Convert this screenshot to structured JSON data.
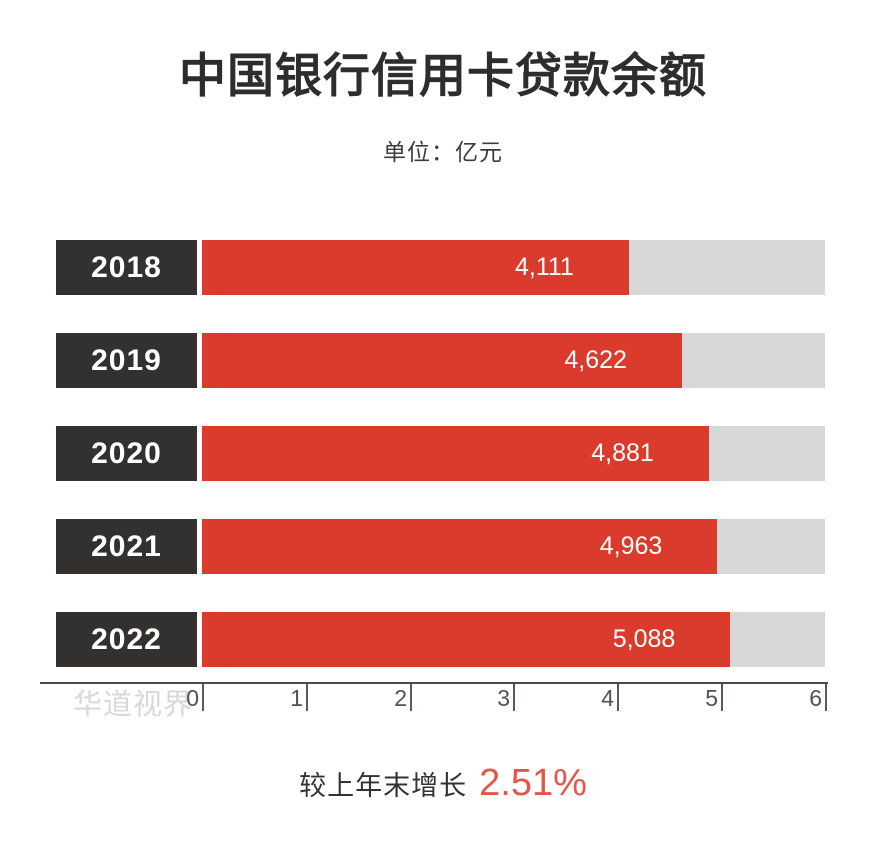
{
  "title": "中国银行信用卡贷款余额",
  "subtitle": "单位：亿元",
  "watermark": "华道视界",
  "footer": {
    "label": "较上年末增长",
    "percent": "2.51%"
  },
  "colors": {
    "bar": "#DA3B2C",
    "track": "#D8D8D8",
    "year_box": "#333130",
    "percent": "#E4564A",
    "axis": "#4E4A47",
    "tick_label": "#56504E",
    "watermark": "#DAD7D7",
    "title_color": "#2D2D2D",
    "subtitle_color": "#3C3C3C",
    "footer_color": "#333333"
  },
  "chart_data": {
    "type": "bar",
    "orientation": "horizontal",
    "title": "中国银行信用卡贷款余额",
    "unit": "亿元",
    "categories": [
      "2018",
      "2019",
      "2020",
      "2021",
      "2022"
    ],
    "values": [
      4111,
      4622,
      4881,
      4963,
      5088
    ],
    "value_labels": [
      "4,111",
      "4,622",
      "4,881",
      "4,963",
      "5,088"
    ],
    "axis_max": 6000,
    "xlim": [
      0,
      6000
    ],
    "x_ticks": [
      "0",
      "1",
      "2",
      "3",
      "4",
      "5",
      "6"
    ],
    "grid": false,
    "legend": false,
    "annotation": "较上年末增长 2.51%"
  }
}
